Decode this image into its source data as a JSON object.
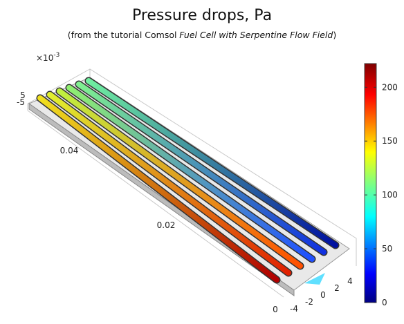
{
  "title": "Pressure drops, Pa",
  "subtitle": {
    "prefix": "(from the tutorial Comsol",
    "emphasis": "Fuel Cell with Serpentine Flow Field",
    "suffix": ")"
  },
  "axes": {
    "scale_label": "×10",
    "scale_exponent": "-3",
    "z_ticks": [
      5,
      -5
    ],
    "y_ticks": [
      0.04,
      0.02,
      0
    ],
    "x_ticks": [
      -4,
      -2,
      0,
      2,
      4
    ]
  },
  "colorbar": {
    "lim": [
      0,
      222
    ],
    "ticks": [
      0,
      50,
      100,
      150,
      200
    ]
  }
}
